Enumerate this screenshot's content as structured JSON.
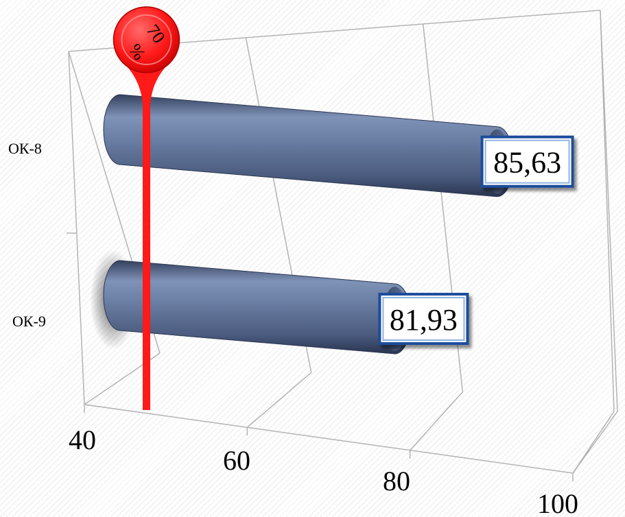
{
  "chart_data": {
    "type": "bar",
    "orientation": "horizontal",
    "style": "3d-cylinder",
    "categories": [
      "ОК-8",
      "ОК-9"
    ],
    "values": [
      85.63,
      81.93
    ],
    "data_labels": [
      "85,63",
      "81,93"
    ],
    "x_ticks": [
      "40",
      "60",
      "80",
      "100"
    ],
    "xlim": [
      40,
      100
    ],
    "reference_line": {
      "value": 70,
      "label_value": "70",
      "label_unit": "%"
    },
    "grid": true,
    "colors": {
      "bar": "#5b6f95",
      "reference": "#ff1a1a",
      "label_border": "#1f4e9c"
    }
  }
}
